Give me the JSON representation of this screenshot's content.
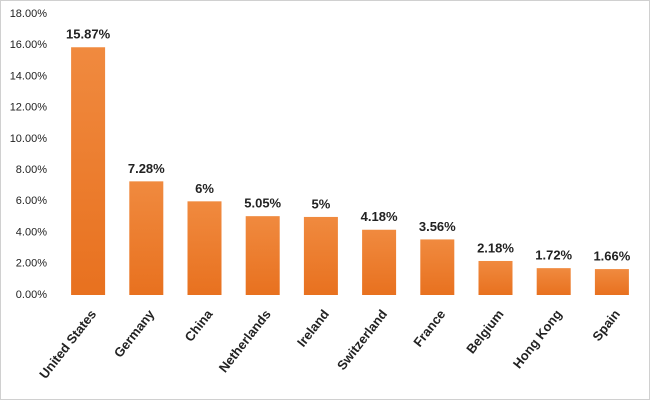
{
  "chart_data": {
    "type": "bar",
    "categories": [
      "United States",
      "Germany",
      "China",
      "Netherlands",
      "Ireland",
      "Switzerland",
      "France",
      "Belgium",
      "Hong Kong",
      "Spain"
    ],
    "values": [
      15.87,
      7.28,
      6,
      5.05,
      5,
      4.18,
      3.56,
      2.18,
      1.72,
      1.66
    ],
    "value_labels": [
      "15.87%",
      "7.28%",
      "6%",
      "5.05%",
      "5%",
      "4.18%",
      "3.56%",
      "2.18%",
      "1.72%",
      "1.66%"
    ],
    "color": "#ed7d31",
    "ylim": [
      0,
      18
    ],
    "yticks": [
      {
        "value": 0,
        "label": "0.00%"
      },
      {
        "value": 2,
        "label": "2.00%"
      },
      {
        "value": 4,
        "label": "4.00%"
      },
      {
        "value": 6,
        "label": "6.00%"
      },
      {
        "value": 8,
        "label": "8.00%"
      },
      {
        "value": 10,
        "label": "10.00%"
      },
      {
        "value": 12,
        "label": "12.00%"
      },
      {
        "value": 14,
        "label": "14.00%"
      },
      {
        "value": 16,
        "label": "16.00%"
      },
      {
        "value": 18,
        "label": "18.00%"
      }
    ],
    "grid": false
  }
}
